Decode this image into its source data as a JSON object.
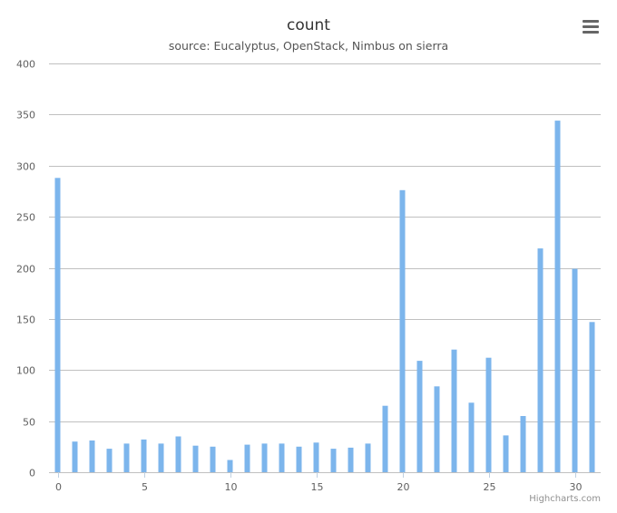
{
  "chart_data": {
    "type": "bar",
    "title": "count",
    "subtitle": "source: Eucalyptus, OpenStack, Nimbus on sierra",
    "x": [
      0,
      1,
      2,
      3,
      4,
      5,
      6,
      7,
      8,
      9,
      10,
      11,
      12,
      13,
      14,
      15,
      16,
      17,
      18,
      19,
      20,
      21,
      22,
      23,
      24,
      25,
      26,
      27,
      28,
      29,
      30,
      31
    ],
    "values": [
      288,
      30,
      31,
      23,
      28,
      32,
      28,
      35,
      26,
      25,
      12,
      27,
      28,
      28,
      25,
      29,
      23,
      24,
      28,
      65,
      276,
      109,
      84,
      120,
      68,
      112,
      36,
      55,
      219,
      344,
      199,
      147
    ],
    "xticks": [
      "0",
      "5",
      "10",
      "15",
      "20",
      "25",
      "30"
    ],
    "xtick_values": [
      0,
      5,
      10,
      15,
      20,
      25,
      30
    ],
    "yticks": [
      "0",
      "50",
      "100",
      "150",
      "200",
      "250",
      "300",
      "350",
      "400"
    ],
    "ytick_values": [
      0,
      50,
      100,
      150,
      200,
      250,
      300,
      350,
      400
    ],
    "ylim": [
      0,
      400
    ],
    "xlim": [
      -0.5,
      31.5
    ],
    "grid": true,
    "legend": "none",
    "colors": {
      "bar": "#7cb5ec",
      "grid": "#c0c0c0",
      "title": "#333333"
    },
    "credits": "Highcharts.com"
  },
  "toolbar": {
    "menu_icon": "hamburger-menu-icon"
  }
}
